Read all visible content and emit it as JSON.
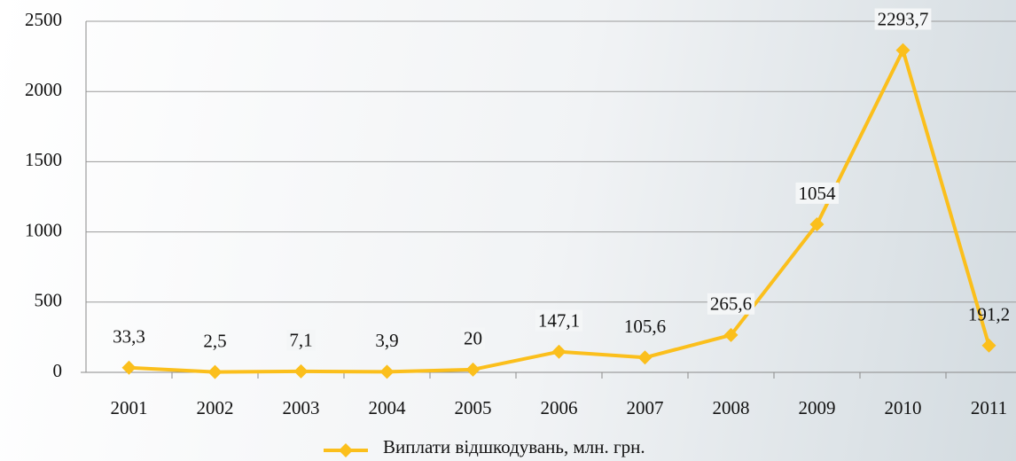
{
  "chart_data": {
    "type": "line",
    "categories": [
      "2001",
      "2002",
      "2003",
      "2004",
      "2005",
      "2006",
      "2007",
      "2008",
      "2009",
      "2010",
      "2011"
    ],
    "series": [
      {
        "name": "Виплати відшкодувань, млн. грн.",
        "color": "#fbbf1c",
        "values": [
          33.3,
          2.5,
          7.1,
          3.9,
          20,
          147.1,
          105.6,
          265.6,
          1054,
          2293.7,
          191.2
        ],
        "value_labels": [
          "33,3",
          "2,5",
          "7,1",
          "3,9",
          "20",
          "147,1",
          "105,6",
          "265,6",
          "1054",
          "2293,7",
          "191,2"
        ]
      }
    ],
    "ylim": [
      0,
      2500
    ],
    "yticks": [
      0,
      500,
      1000,
      1500,
      2000,
      2500
    ],
    "grid": true,
    "legend": "bottom"
  }
}
